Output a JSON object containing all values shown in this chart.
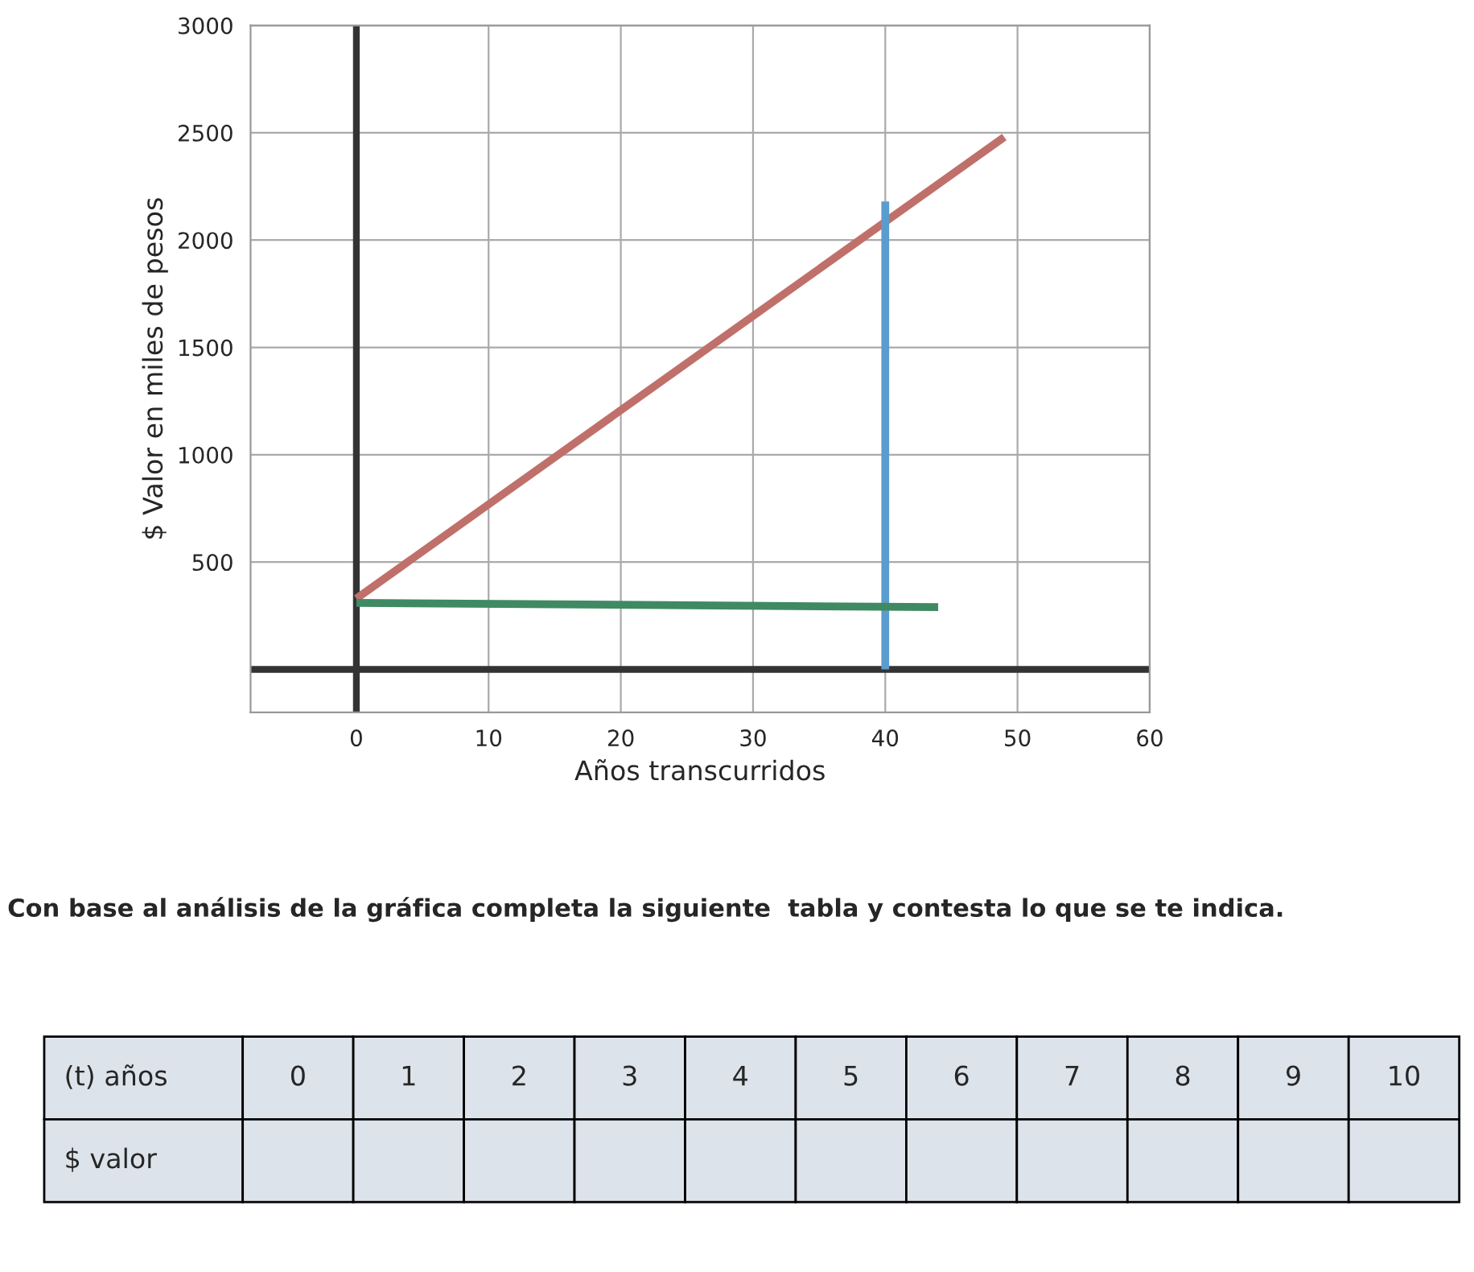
{
  "chart_data": {
    "type": "line",
    "xlabel": "Años transcurridos",
    "ylabel": "$ Valor en miles de pesos",
    "series": [
      {
        "color": "#c0706a",
        "x": [
          0,
          49
        ],
        "values": [
          330,
          2480
        ]
      },
      {
        "color": "#5b9ccf",
        "x": [
          40,
          40
        ],
        "values": [
          0,
          2180
        ]
      },
      {
        "color": "#3f8a62",
        "x": [
          0,
          44
        ],
        "values": [
          310,
          290
        ]
      }
    ],
    "xlim": [
      -8,
      60
    ],
    "ylim": [
      -200,
      3000
    ],
    "xticks": [
      0,
      10,
      20,
      30,
      40,
      50,
      60
    ],
    "yticks": [
      500,
      1000,
      1500,
      2000,
      2500,
      3000
    ],
    "grid": true,
    "annotations": [
      "Con base al análisis de la gráfica completa la siguiente  tabla y contesta lo que se te indica.",
      "(t) años",
      "0",
      "1",
      "2",
      "3",
      "4",
      "5",
      "6",
      "7",
      "8",
      "9",
      "10",
      "$ valor"
    ]
  }
}
